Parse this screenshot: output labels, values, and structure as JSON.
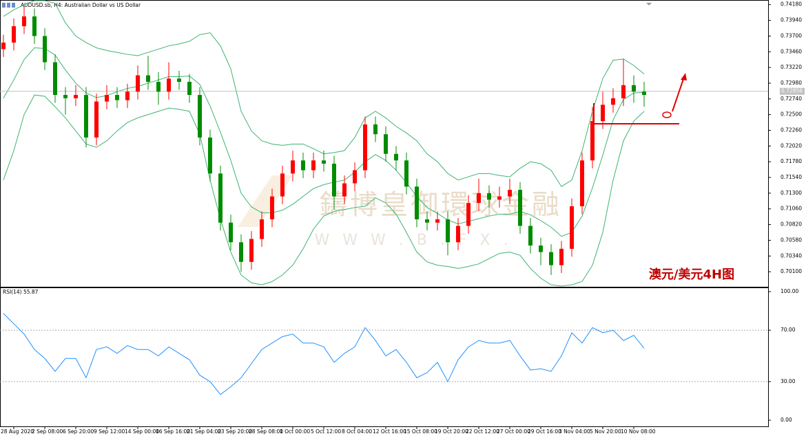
{
  "chart_data": [
    {
      "type": "candlestick",
      "title": "AUDUSD.sb, H4: Australian Dollar vs US Dollar",
      "categories": [
        null,
        "28 Aug 2020",
        null,
        null,
        "2 Sep 08:00",
        null,
        null,
        "6 Sep 20:00",
        null,
        null,
        "9 Sep 12:00",
        null,
        null,
        "14 Sep 00:00",
        null,
        null,
        "16 Sep 16:00",
        null,
        null,
        "21 Sep 04:00",
        null,
        null,
        "23 Sep 20:00",
        null,
        null,
        "28 Sep 08:00",
        null,
        null,
        "1 Oct 00:00",
        null,
        null,
        "5 Oct 12:00",
        null,
        null,
        "8 Oct 04:00",
        null,
        null,
        "12 Oct 16:00",
        null,
        null,
        "15 Oct 08:00",
        null,
        null,
        "19 Oct 20:00",
        null,
        null,
        "22 Oct 12:00",
        null,
        null,
        "27 Oct 00:00",
        null,
        null,
        "29 Oct 16:00",
        null,
        null,
        "3 Nov 04:00",
        null,
        null,
        "5 Nov 20:00",
        null,
        null,
        "10 Nov 08:00",
        null
      ],
      "open": [
        0.735,
        0.736,
        0.7385,
        0.74,
        0.737,
        0.733,
        0.728,
        0.7275,
        0.728,
        0.7215,
        0.727,
        0.728,
        0.7272,
        0.7285,
        0.731,
        0.73,
        0.7285,
        0.7305,
        0.73,
        0.728,
        0.7215,
        0.716,
        0.7085,
        0.7055,
        0.7025,
        0.706,
        0.709,
        0.7125,
        0.716,
        0.718,
        0.7165,
        0.718,
        0.7175,
        0.7125,
        0.7145,
        0.7165,
        0.7235,
        0.722,
        0.719,
        0.718,
        0.714,
        0.709,
        0.7085,
        0.709,
        0.7055,
        0.708,
        0.7115,
        0.713,
        0.712,
        0.7125,
        0.7135,
        0.708,
        0.705,
        0.704,
        0.702,
        0.7045,
        0.711,
        0.718,
        0.724,
        0.7265,
        0.7275,
        0.7295,
        0.7285
      ],
      "high": [
        0.7372,
        0.7397,
        0.7416,
        0.7412,
        0.7382,
        0.7342,
        0.7292,
        0.7295,
        0.7292,
        0.7282,
        0.7295,
        0.7292,
        0.7297,
        0.7325,
        0.734,
        0.7315,
        0.733,
        0.7317,
        0.7312,
        0.7292,
        0.7227,
        0.7172,
        0.7097,
        0.7067,
        0.7072,
        0.7102,
        0.7137,
        0.7172,
        0.7195,
        0.7192,
        0.7192,
        0.7195,
        0.7187,
        0.7157,
        0.7177,
        0.7247,
        0.7247,
        0.7232,
        0.7202,
        0.7192,
        0.7152,
        0.7102,
        0.7102,
        0.7102,
        0.7092,
        0.7127,
        0.7152,
        0.7142,
        0.714,
        0.7152,
        0.7147,
        0.7092,
        0.7062,
        0.7052,
        0.7057,
        0.7122,
        0.7192,
        0.7262,
        0.7285,
        0.729,
        0.7335,
        0.731,
        0.73
      ],
      "low": [
        0.7338,
        0.7348,
        0.7373,
        0.7358,
        0.7318,
        0.7268,
        0.725,
        0.7263,
        0.72,
        0.7203,
        0.7258,
        0.726,
        0.726,
        0.7273,
        0.7288,
        0.7265,
        0.7273,
        0.7288,
        0.7268,
        0.7203,
        0.7148,
        0.7073,
        0.7043,
        0.701,
        0.7013,
        0.7048,
        0.7078,
        0.7113,
        0.7148,
        0.7153,
        0.7153,
        0.7163,
        0.7105,
        0.7113,
        0.7133,
        0.7153,
        0.7208,
        0.7178,
        0.7165,
        0.7128,
        0.7078,
        0.7073,
        0.7073,
        0.7035,
        0.7043,
        0.7068,
        0.7103,
        0.7108,
        0.7108,
        0.7113,
        0.7068,
        0.7038,
        0.702,
        0.7005,
        0.7008,
        0.7033,
        0.7098,
        0.7168,
        0.7228,
        0.7253,
        0.7263,
        0.7268,
        0.7262
      ],
      "close": [
        0.736,
        0.7385,
        0.74,
        0.737,
        0.733,
        0.728,
        0.7275,
        0.728,
        0.7215,
        0.727,
        0.728,
        0.7272,
        0.7285,
        0.731,
        0.73,
        0.7285,
        0.7305,
        0.73,
        0.728,
        0.7215,
        0.716,
        0.7085,
        0.7055,
        0.7025,
        0.706,
        0.709,
        0.7125,
        0.716,
        0.718,
        0.7165,
        0.718,
        0.7175,
        0.7125,
        0.7145,
        0.7165,
        0.7235,
        0.722,
        0.719,
        0.718,
        0.714,
        0.709,
        0.7085,
        0.709,
        0.7055,
        0.708,
        0.7115,
        0.713,
        0.712,
        0.7125,
        0.7135,
        0.708,
        0.705,
        0.704,
        0.702,
        0.7045,
        0.711,
        0.718,
        0.724,
        0.7265,
        0.7275,
        0.7295,
        0.7285,
        0.728
      ],
      "up_color": "#ff0000",
      "down_color": "#008c00",
      "bands": {
        "color": "#3cb371",
        "upper": [
          0.74,
          0.741,
          0.7418,
          0.7424,
          0.7424,
          0.742,
          0.739,
          0.737,
          0.736,
          0.7352,
          0.7348,
          0.7345,
          0.7342,
          0.734,
          0.7345,
          0.735,
          0.7355,
          0.7358,
          0.7362,
          0.7372,
          0.7375,
          0.7355,
          0.732,
          0.7255,
          0.7225,
          0.721,
          0.7205,
          0.7203,
          0.7205,
          0.7205,
          0.7198,
          0.719,
          0.7192,
          0.7195,
          0.7215,
          0.7245,
          0.7255,
          0.7245,
          0.7232,
          0.7222,
          0.721,
          0.719,
          0.7178,
          0.716,
          0.715,
          0.7155,
          0.716,
          0.716,
          0.7157,
          0.7155,
          0.7168,
          0.7178,
          0.7175,
          0.7165,
          0.714,
          0.715,
          0.7195,
          0.7255,
          0.7305,
          0.7333,
          0.7335,
          0.7325,
          0.7312
        ],
        "middle": [
          0.7275,
          0.7303,
          0.7334,
          0.7352,
          0.7351,
          0.7341,
          0.7318,
          0.7298,
          0.7283,
          0.7276,
          0.7279,
          0.7285,
          0.729,
          0.7293,
          0.7298,
          0.7303,
          0.7308,
          0.7308,
          0.7309,
          0.7296,
          0.7263,
          0.7223,
          0.718,
          0.713,
          0.7109,
          0.71,
          0.71,
          0.7104,
          0.7113,
          0.7125,
          0.7137,
          0.7143,
          0.7147,
          0.715,
          0.7162,
          0.7178,
          0.7189,
          0.718,
          0.7165,
          0.7146,
          0.7125,
          0.7108,
          0.7099,
          0.7089,
          0.7083,
          0.7087,
          0.7091,
          0.7095,
          0.7098,
          0.7098,
          0.7102,
          0.7097,
          0.7088,
          0.7078,
          0.7064,
          0.707,
          0.7095,
          0.7138,
          0.7188,
          0.7242,
          0.7273,
          0.7283,
          0.7284
        ],
        "lower": [
          0.715,
          0.7195,
          0.725,
          0.728,
          0.7278,
          0.7262,
          0.7245,
          0.7225,
          0.7205,
          0.72,
          0.721,
          0.7225,
          0.7238,
          0.7245,
          0.725,
          0.7255,
          0.726,
          0.7258,
          0.7255,
          0.722,
          0.715,
          0.709,
          0.704,
          0.7005,
          0.6993,
          0.699,
          0.6995,
          0.7005,
          0.702,
          0.7045,
          0.7075,
          0.7095,
          0.7102,
          0.7105,
          0.7108,
          0.711,
          0.7123,
          0.7115,
          0.7098,
          0.707,
          0.704,
          0.7025,
          0.702,
          0.7018,
          0.7015,
          0.7018,
          0.7022,
          0.703,
          0.7038,
          0.704,
          0.7035,
          0.7015,
          0.7,
          0.699,
          0.6988,
          0.699,
          0.6995,
          0.702,
          0.707,
          0.715,
          0.721,
          0.724,
          0.7255
        ]
      },
      "ylim": [
        0.6987,
        0.7424
      ],
      "yticks": [
        {
          "value": 0.701,
          "label": "0.70100"
        },
        {
          "value": 0.7034,
          "label": "0.70340"
        },
        {
          "value": 0.7058,
          "label": "0.70580"
        },
        {
          "value": 0.7082,
          "label": "0.70820"
        },
        {
          "value": 0.7106,
          "label": "0.71060"
        },
        {
          "value": 0.713,
          "label": "0.71300"
        },
        {
          "value": 0.7154,
          "label": "0.71540"
        },
        {
          "value": 0.7178,
          "label": "0.71780"
        },
        {
          "value": 0.7202,
          "label": "0.72020"
        },
        {
          "value": 0.7226,
          "label": "0.72260"
        },
        {
          "value": 0.725,
          "label": "0.72500"
        },
        {
          "value": 0.7274,
          "label": "0.72740"
        },
        {
          "value": 0.7298,
          "label": "0.72980"
        },
        {
          "value": 0.7322,
          "label": "0.73220"
        },
        {
          "value": 0.7346,
          "label": "0.73460"
        },
        {
          "value": 0.737,
          "label": "0.73700"
        },
        {
          "value": 0.7394,
          "label": "0.73940"
        },
        {
          "value": 0.7418,
          "label": "0.74180"
        }
      ],
      "current_price": {
        "value": 0.72856,
        "label": "0.72856"
      },
      "annotation": "澳元/美元4H图",
      "watermark": [
        "鑄博皇御環球金融",
        "W W W . B . F X ."
      ]
    },
    {
      "type": "line",
      "title": "RSI(14) 55.87",
      "values": [
        83,
        75,
        67,
        55,
        48,
        38,
        48,
        48,
        33,
        55,
        57,
        52,
        58,
        55,
        55,
        50,
        57,
        52,
        47,
        35,
        30,
        20,
        26,
        33,
        44,
        55,
        60,
        65,
        67,
        60,
        60,
        57,
        45,
        52,
        57,
        72,
        62,
        50,
        55,
        45,
        33,
        37,
        45,
        30,
        47,
        57,
        62,
        60,
        60,
        62,
        50,
        39,
        40,
        38,
        50,
        68,
        60,
        72,
        68,
        70,
        62,
        66,
        55.87
      ],
      "color": "#1e90ff",
      "ylim": [
        -4.8,
        102.7
      ],
      "yticks": [
        {
          "value": 100,
          "label": "100.00"
        },
        {
          "value": 70,
          "label": "70.00"
        },
        {
          "value": 30,
          "label": "30.00"
        },
        {
          "value": 0,
          "label": "0.00"
        }
      ],
      "levels": [
        70,
        30
      ]
    }
  ]
}
